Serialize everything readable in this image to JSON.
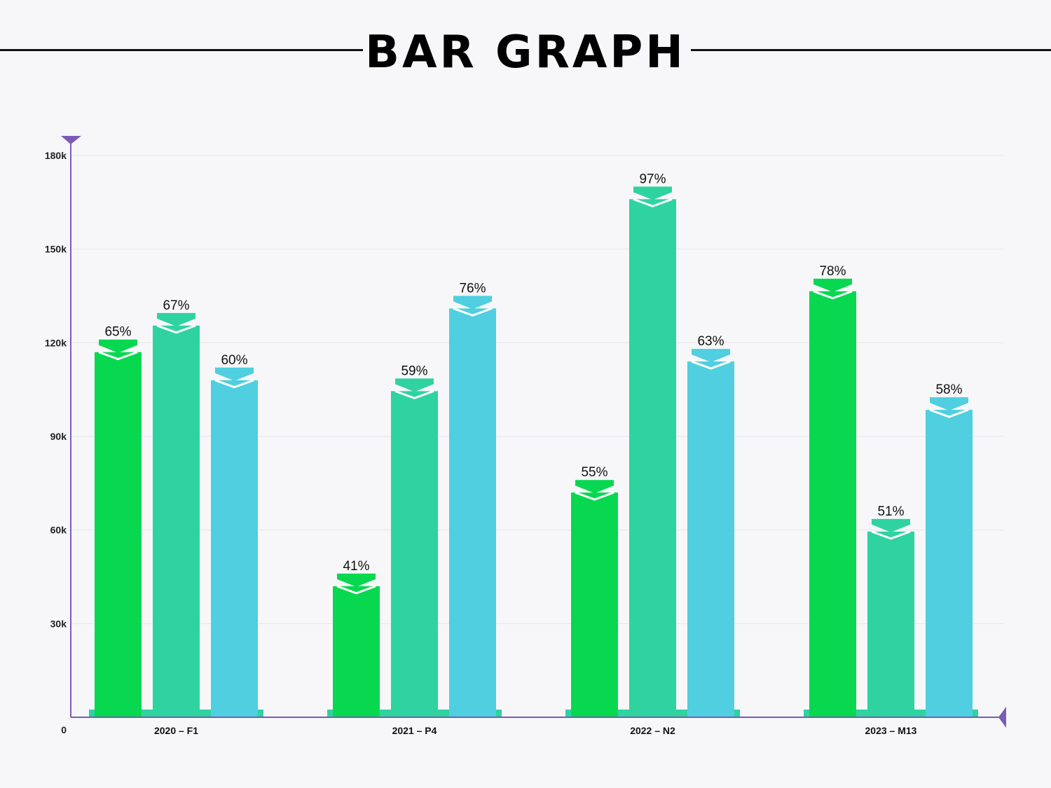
{
  "title": "BAR GRAPH",
  "chart_data": {
    "type": "bar",
    "categories": [
      "2020 – F1",
      "2021 – P4",
      "2022 – N2",
      "2023 – M13"
    ],
    "series": [
      {
        "values": [
          117000,
          42000,
          72000,
          136500
        ],
        "labels": [
          "65%",
          "41%",
          "55%",
          "78%"
        ],
        "color": "#07d850"
      },
      {
        "values": [
          125500,
          104500,
          166000,
          59500
        ],
        "labels": [
          "67%",
          "59%",
          "97%",
          "51%"
        ],
        "color": "#2fd39f"
      },
      {
        "values": [
          108000,
          131000,
          114000,
          98500
        ],
        "labels": [
          "60%",
          "76%",
          "63%",
          "58%"
        ],
        "color": "#4fcfe0"
      }
    ],
    "yticks": [
      "0",
      "30k",
      "60k",
      "90k",
      "120k",
      "150k",
      "180k"
    ],
    "ytick_values": [
      0,
      30000,
      60000,
      90000,
      120000,
      150000,
      180000
    ],
    "ylim": [
      0,
      180000
    ],
    "grid": true,
    "axis_color": "#7b5bb8"
  }
}
